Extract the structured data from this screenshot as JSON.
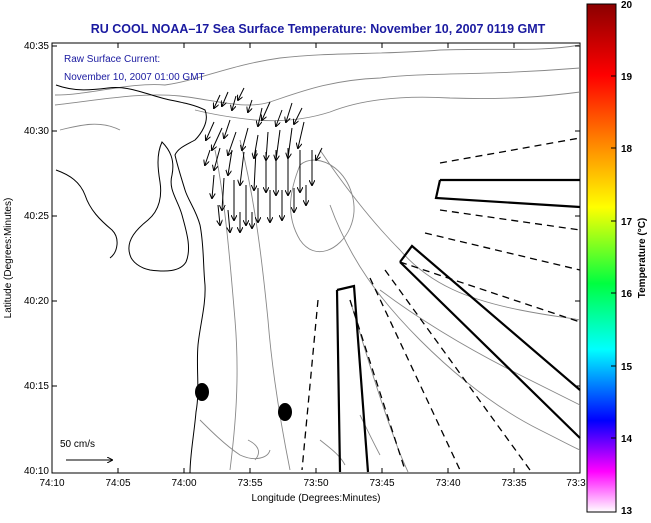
{
  "title": "RU COOL  NOAA–17  Sea Surface Temperature:  November 10, 2007 0119 GMT",
  "annotation_line1": "Raw Surface Current:",
  "annotation_line2": "November 10, 2007 01:00 GMT",
  "y_axis_label": "Latitude (Degrees:Minutes)",
  "x_axis_label": "Longitude (Degrees:Minutes)",
  "y_ticks": [
    "40:35",
    "40:30",
    "40:25",
    "40:20",
    "40:15",
    "40:10"
  ],
  "x_ticks": [
    "74:10",
    "74:05",
    "74:00",
    "73:55",
    "73:50",
    "73:45",
    "73:40",
    "73:35",
    "73:3"
  ],
  "scale_label": "50 cm/s",
  "colorbar_label": "Temperature (°C)",
  "colorbar_ticks": [
    "20",
    "19",
    "18",
    "17",
    "16",
    "15",
    "14",
    "13"
  ],
  "colors": {
    "title": "#1a1aa0",
    "annotation": "#1a1aa0",
    "axis": "#000000",
    "coastline": "#000000",
    "bathymetry": "#888888",
    "colorbar_stops": [
      "#8b0000",
      "#ff0000",
      "#ff8c00",
      "#ffff00",
      "#00ff00",
      "#00ffff",
      "#0000ff",
      "#ff00ff",
      "#ffffff"
    ]
  }
}
